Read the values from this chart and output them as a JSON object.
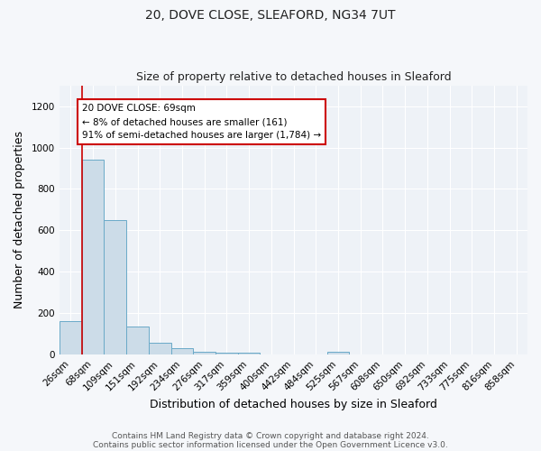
{
  "title_line1": "20, DOVE CLOSE, SLEAFORD, NG34 7UT",
  "title_line2": "Size of property relative to detached houses in Sleaford",
  "xlabel": "Distribution of detached houses by size in Sleaford",
  "ylabel": "Number of detached properties",
  "categories": [
    "26sqm",
    "68sqm",
    "109sqm",
    "151sqm",
    "192sqm",
    "234sqm",
    "276sqm",
    "317sqm",
    "359sqm",
    "400sqm",
    "442sqm",
    "484sqm",
    "525sqm",
    "567sqm",
    "608sqm",
    "650sqm",
    "692sqm",
    "733sqm",
    "775sqm",
    "816sqm",
    "858sqm"
  ],
  "values": [
    161,
    940,
    650,
    135,
    60,
    32,
    15,
    10,
    10,
    0,
    0,
    0,
    13,
    0,
    0,
    0,
    0,
    0,
    0,
    0,
    0
  ],
  "bar_color": "#ccdce8",
  "bar_edge_color": "#6aaac8",
  "ylim": [
    0,
    1300
  ],
  "yticks": [
    0,
    200,
    400,
    600,
    800,
    1000,
    1200
  ],
  "annotation_text": "20 DOVE CLOSE: 69sqm\n← 8% of detached houses are smaller (161)\n91% of semi-detached houses are larger (1,784) →",
  "annotation_box_color": "#ffffff",
  "annotation_box_edge": "#cc0000",
  "property_line_color": "#cc0000",
  "background_color": "#eef2f7",
  "fig_background": "#f5f7fa",
  "footer_line1": "Contains HM Land Registry data © Crown copyright and database right 2024.",
  "footer_line2": "Contains public sector information licensed under the Open Government Licence v3.0.",
  "title_fontsize": 10,
  "subtitle_fontsize": 9,
  "axis_label_fontsize": 9,
  "tick_fontsize": 7.5,
  "footer_fontsize": 6.5
}
